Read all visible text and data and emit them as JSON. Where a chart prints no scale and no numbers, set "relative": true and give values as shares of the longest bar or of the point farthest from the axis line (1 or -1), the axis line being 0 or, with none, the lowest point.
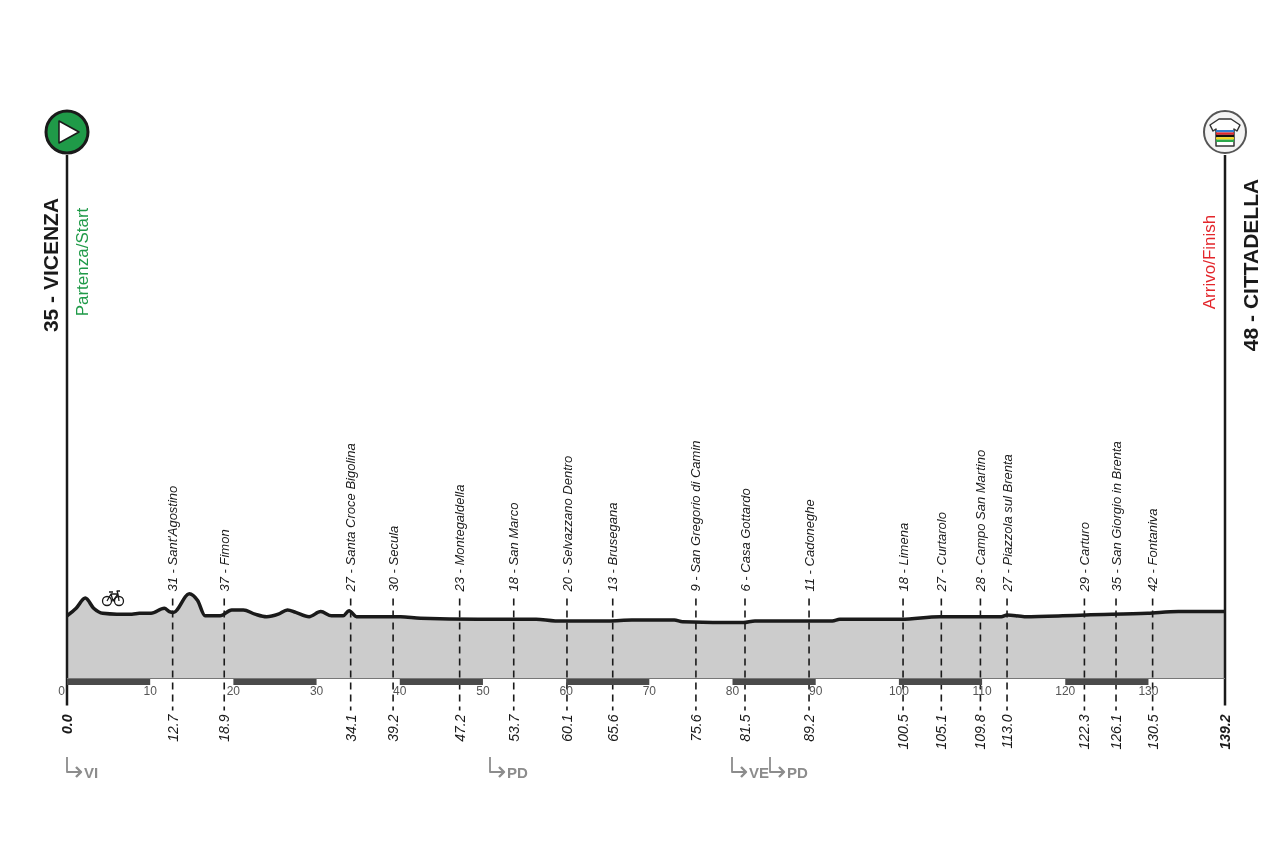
{
  "chart_data": {
    "type": "area",
    "relative": true,
    "color": "#cccccc",
    "x": [
      0,
      1.1,
      2.2,
      3.2,
      4.3,
      6.0,
      7.8,
      8.7,
      10.1,
      11.7,
      12.3,
      12.8,
      14.7,
      15.7,
      16.6,
      18.4,
      19.8,
      21.2,
      22.6,
      24.0,
      25.4,
      26.5,
      27.5,
      29.1,
      30.5,
      31.8,
      33.2,
      33.9,
      34.8,
      36.9,
      40.1,
      42.5,
      49.4,
      56.4,
      58.7,
      65.1,
      67.9,
      73.0,
      74.0,
      81.3,
      82.7,
      92.0,
      92.9,
      100.3,
      104.9,
      112.3,
      113.0,
      115.1,
      119.7,
      122.5,
      129.9,
      133.6,
      139.2
    ],
    "values": [
      0.74,
      0.83,
      0.95,
      0.83,
      0.77,
      0.76,
      0.76,
      0.77,
      0.77,
      0.83,
      0.79,
      0.78,
      1,
      0.92,
      0.74,
      0.74,
      0.81,
      0.81,
      0.76,
      0.73,
      0.76,
      0.81,
      0.78,
      0.73,
      0.79,
      0.74,
      0.74,
      0.8,
      0.73,
      0.73,
      0.73,
      0.71,
      0.7,
      0.7,
      0.68,
      0.68,
      0.69,
      0.69,
      0.67,
      0.66,
      0.68,
      0.68,
      0.7,
      0.7,
      0.73,
      0.73,
      0.75,
      0.73,
      0.74,
      0.75,
      0.77,
      0.79,
      0.79
    ],
    "xlim": [
      0,
      139.2
    ],
    "xticks": [
      0,
      10,
      20,
      30,
      40,
      50,
      60,
      70,
      80,
      90,
      100,
      110,
      120,
      130
    ],
    "x2lim": [
      0,
      139.2
    ],
    "x2ticks": [
      {
        "value": 0,
        "label": "0.0"
      },
      12.7,
      18.9,
      34.1,
      39.2,
      47.2,
      53.7,
      60.1,
      65.6,
      75.6,
      81.5,
      89.2,
      100.5,
      105.1,
      109.8,
      {
        "value": 113,
        "label": "113.0"
      },
      122.3,
      126.1,
      130.5,
      139.2
    ],
    "ref_lines": [
      {
        "axis": "x",
        "value": 0,
        "label": "35 - VICENZA"
      },
      {
        "axis": "x",
        "value": 12.7,
        "label": "31 - Sant'Agostino",
        "line_style": "dashed"
      },
      {
        "axis": "x",
        "value": 18.9,
        "label": "37 - Fimon",
        "line_style": "dashed"
      },
      {
        "axis": "x",
        "value": 34.1,
        "label": "27 - Santa Croce Bigolina",
        "line_style": "dashed"
      },
      {
        "axis": "x",
        "value": 39.2,
        "label": "30 - Secula",
        "line_style": "dashed"
      },
      {
        "axis": "x",
        "value": 47.2,
        "label": "23 - Montegaldella",
        "line_style": "dashed"
      },
      {
        "axis": "x",
        "value": 53.7,
        "label": "18 - San Marco",
        "line_style": "dashed"
      },
      {
        "axis": "x",
        "value": 60.1,
        "label": "20 - Selvazzano Dentro",
        "line_style": "dashed"
      },
      {
        "axis": "x",
        "value": 65.6,
        "label": "13 - Brusegana",
        "line_style": "dashed"
      },
      {
        "axis": "x",
        "value": 75.6,
        "label": "9 - San Gregorio di Camin",
        "line_style": "dashed"
      },
      {
        "axis": "x",
        "value": 81.5,
        "label": "6 - Casa Gottardo",
        "line_style": "dashed"
      },
      {
        "axis": "x",
        "value": 89.2,
        "label": "11 - Cadoneghe",
        "line_style": "dashed"
      },
      {
        "axis": "x",
        "value": 100.5,
        "label": "18 - Limena",
        "line_style": "dashed"
      },
      {
        "axis": "x",
        "value": 105.1,
        "label": "27 - Curtarolo",
        "line_style": "dashed"
      },
      {
        "axis": "x",
        "value": 109.8,
        "label": "28 - Campo San Martino",
        "line_style": "dashed"
      },
      {
        "axis": "x",
        "value": 113.0,
        "label": "27 - Piazzola sul Brenta",
        "line_style": "dashed"
      },
      {
        "axis": "x",
        "value": 122.3,
        "label": "29 - Carturo",
        "line_style": "dashed"
      },
      {
        "axis": "x",
        "value": 126.1,
        "label": "35 - San Giorgio in Brenta",
        "line_style": "dashed"
      },
      {
        "axis": "x",
        "value": 130.5,
        "label": "42 - Fontaniva",
        "line_style": "dashed"
      },
      {
        "axis": "x",
        "value": 139.2,
        "label": "48 - CITTADELLA"
      }
    ],
    "annotations": [
      "Partenza/Start",
      "Arrivo/Finish",
      "VI",
      "PD",
      "VE",
      "PD"
    ]
  }
}
